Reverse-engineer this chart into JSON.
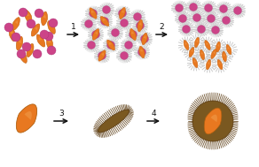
{
  "background_color": "#ffffff",
  "orange_color": "#E87820",
  "pink_color": "#CC4488",
  "gray_spike_color": "#BBBBBB",
  "brown_color": "#8B6530",
  "arrow_color": "#111111",
  "step_labels": [
    "1",
    "2",
    "3",
    "4"
  ],
  "figsize": [
    2.92,
    1.89
  ],
  "dpi": 100
}
